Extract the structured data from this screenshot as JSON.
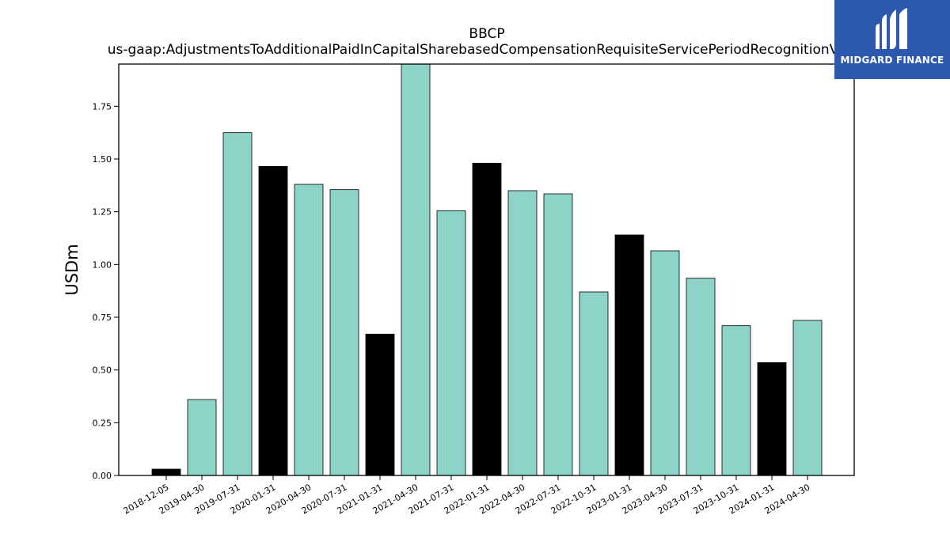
{
  "chart_data": {
    "type": "bar",
    "title": "BBCP",
    "subtitle": "us-gaap:AdjustmentsToAdditionalPaidInCapitalSharebasedCompensationRequisiteServicePeriodRecognitionValue",
    "ylabel": "USDm",
    "xlabel": "",
    "ylim": [
      0,
      1.95
    ],
    "yticks": [
      "0.00",
      "0.25",
      "0.50",
      "0.75",
      "1.00",
      "1.25",
      "1.50",
      "1.75"
    ],
    "grid": false,
    "categories": [
      "2018-12-05",
      "2019-04-30",
      "2019-07-31",
      "2020-01-31",
      "2020-04-30",
      "2020-07-31",
      "2021-01-31",
      "2021-04-30",
      "2021-07-31",
      "2022-01-31",
      "2022-04-30",
      "2022-07-31",
      "2022-10-31",
      "2023-01-31",
      "2023-04-30",
      "2023-07-31",
      "2023-10-31",
      "2024-01-31",
      "2024-04-30"
    ],
    "values": [
      0.03,
      0.36,
      1.625,
      1.465,
      1.38,
      1.355,
      0.67,
      1.96,
      1.255,
      1.48,
      1.35,
      1.335,
      0.87,
      1.14,
      1.065,
      0.935,
      0.71,
      0.535,
      0.735
    ],
    "bar_colors": [
      "#000000",
      "#8dd3c7",
      "#8dd3c7",
      "#000000",
      "#8dd3c7",
      "#8dd3c7",
      "#000000",
      "#8dd3c7",
      "#8dd3c7",
      "#000000",
      "#8dd3c7",
      "#8dd3c7",
      "#8dd3c7",
      "#000000",
      "#8dd3c7",
      "#8dd3c7",
      "#8dd3c7",
      "#000000",
      "#8dd3c7"
    ]
  },
  "logo": {
    "text": "MIDGARD FINANCE",
    "icon": "midgard-logo-icon",
    "background": "#2c58b0"
  }
}
